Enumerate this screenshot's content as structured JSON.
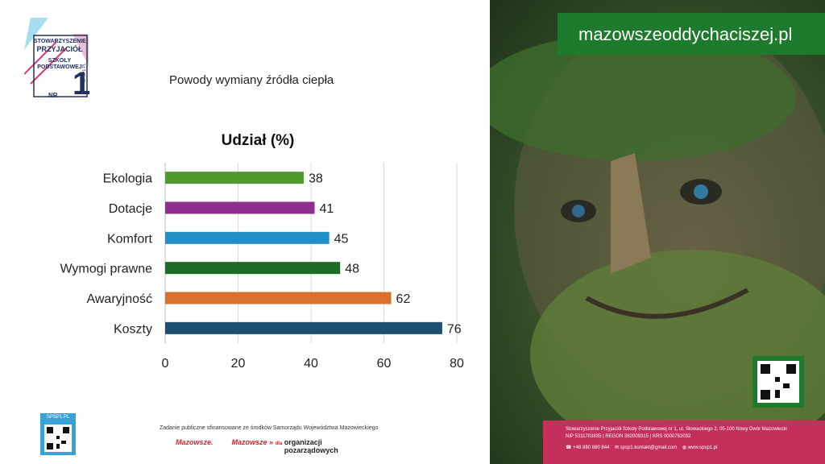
{
  "logo": {
    "line1": "STOWARZYSZENIE",
    "line2": "PRZYJACIÓŁ",
    "line3": "SZKOŁY",
    "line4": "PODSTAWOWEJ",
    "nr": "NR",
    "number": "1",
    "side": "SPSP1.PL"
  },
  "doc_title": "Powody wymiany źródła ciepła",
  "chart_data": {
    "type": "bar",
    "orientation": "horizontal",
    "title": "Udział (%)",
    "categories": [
      "Ekologia",
      "Dotacje",
      "Komfort",
      "Wymogi prawne",
      "Awaryjność",
      "Koszty"
    ],
    "values": [
      38,
      41,
      45,
      48,
      62,
      76
    ],
    "colors": [
      "#4e9a2c",
      "#8e2f8f",
      "#1f8fc6",
      "#1d6b26",
      "#d9702f",
      "#1c4f70"
    ],
    "xlim": [
      0,
      80
    ],
    "xticks": [
      0,
      20,
      40,
      60,
      80
    ],
    "grid": true
  },
  "footer": {
    "funding": "Zadanie publiczne sfinansowane ze środków Samorządu Województwa Mazowieckiego",
    "logo1": "Mazowsze.",
    "logo2": "Mazowsze",
    "logo3_prefix": "dla",
    "logo3a": "organizacji",
    "logo3b": "pozarządowych",
    "qr_label": "SPSP1.PL"
  },
  "right": {
    "banner": "mazowszeoddychaciszej.pl",
    "contact1": "Stowarzyszenie Przyjaciół Szkoły Podstawowej nr 1, ul. Słowackiego 2, 05-100 Nowy Dwór Mazowiecki",
    "contact2": "NIP 5311703835 | REGON 382009315 | KRS 0000762032",
    "phone": "+48 880 880 844",
    "email": "spsp1.kontakt@gmail.com",
    "web": "www.spsp1.pl"
  }
}
